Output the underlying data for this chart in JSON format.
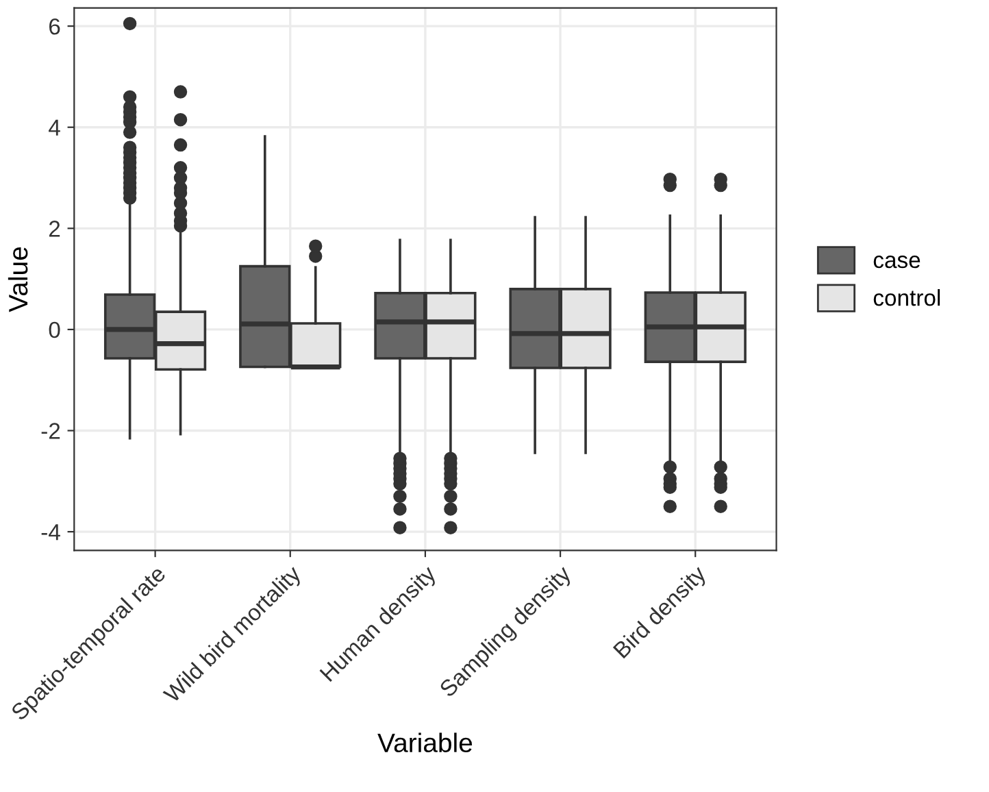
{
  "chart_data": {
    "type": "box",
    "xlabel": "Variable",
    "ylabel": "Value",
    "categories": [
      "Spatio-temporal rate",
      "Wild bird mortality",
      "Human density",
      "Sampling density",
      "Bird density"
    ],
    "ylim": [
      -4.37,
      6.36
    ],
    "yticks": [
      -4,
      -2,
      0,
      2,
      4,
      6
    ],
    "grid": true,
    "legend": "right",
    "series": [
      {
        "name": "case",
        "color": "#666666",
        "boxes": [
          {
            "low": -2.15,
            "q1": -0.57,
            "median": 0.0,
            "q3": 0.69,
            "high": 2.5,
            "outliers": [
              2.6,
              2.7,
              2.8,
              2.9,
              3.0,
              3.1,
              3.2,
              3.3,
              3.4,
              3.5,
              3.6,
              3.9,
              4.1,
              4.2,
              4.3,
              4.4,
              4.6,
              6.05
            ]
          },
          {
            "low": -0.74,
            "q1": -0.74,
            "median": 0.11,
            "q3": 1.25,
            "high": 3.82
          },
          {
            "low": -2.5,
            "q1": -0.57,
            "median": 0.15,
            "q3": 0.72,
            "high": 1.77,
            "outliers": [
              -2.55,
              -2.65,
              -2.75,
              -2.85,
              -2.95,
              -3.05,
              -3.3,
              -3.55,
              -3.92
            ]
          },
          {
            "low": -2.44,
            "q1": -0.76,
            "median": -0.08,
            "q3": 0.8,
            "high": 2.22
          },
          {
            "low": -2.65,
            "q1": -0.64,
            "median": 0.05,
            "q3": 0.73,
            "high": 2.25,
            "outliers": [
              2.85,
              2.97,
              -2.72,
              -2.95,
              -3.05,
              -3.12,
              -3.5
            ]
          }
        ]
      },
      {
        "name": "control",
        "color": "#e5e5e5",
        "boxes": [
          {
            "low": -2.07,
            "q1": -0.79,
            "median": -0.28,
            "q3": 0.35,
            "high": 2.0,
            "outliers": [
              2.05,
              2.15,
              2.3,
              2.5,
              2.7,
              2.8,
              3.0,
              3.2,
              3.65,
              4.15,
              4.7
            ]
          },
          {
            "low": -0.74,
            "q1": -0.74,
            "median": -0.74,
            "q3": 0.12,
            "high": 1.23,
            "outliers": [
              1.45,
              1.65
            ]
          },
          {
            "low": -2.5,
            "q1": -0.57,
            "median": 0.15,
            "q3": 0.72,
            "high": 1.77,
            "outliers": [
              -2.55,
              -2.65,
              -2.75,
              -2.85,
              -2.95,
              -3.05,
              -3.3,
              -3.55,
              -3.92
            ]
          },
          {
            "low": -2.44,
            "q1": -0.76,
            "median": -0.08,
            "q3": 0.8,
            "high": 2.22
          },
          {
            "low": -2.65,
            "q1": -0.64,
            "median": 0.05,
            "q3": 0.73,
            "high": 2.25,
            "outliers": [
              2.85,
              2.97,
              -2.72,
              -2.95,
              -3.05,
              -3.12,
              -3.5
            ]
          }
        ]
      }
    ]
  }
}
